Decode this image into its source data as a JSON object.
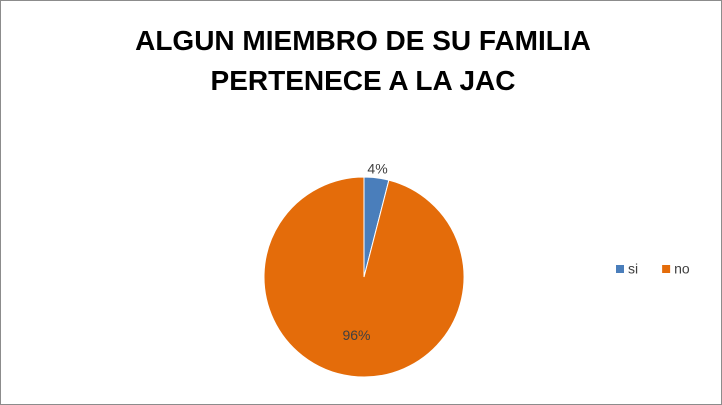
{
  "chart_data": {
    "type": "pie",
    "title": "ALGUN MIEMBRO DE SU FAMILIA PERTENECE A LA JAC",
    "categories": [
      "si",
      "no"
    ],
    "values": [
      4,
      96
    ],
    "value_labels": [
      "4%",
      "96%"
    ],
    "colors": [
      "#4a7ebb",
      "#e46c0a"
    ],
    "legend": "right"
  }
}
